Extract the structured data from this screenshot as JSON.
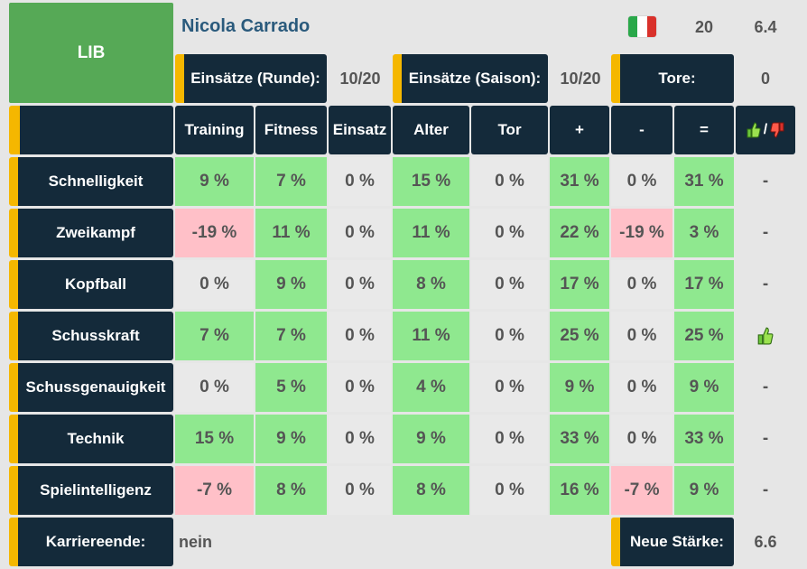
{
  "player": {
    "position": "LIB",
    "name": "Nicola Carrado",
    "flag_colors": [
      "#2aa84a",
      "#ffffff",
      "#d9312b"
    ],
    "flag_icon": "italy-flag-icon",
    "age": "20",
    "strength": "6.4"
  },
  "stats_header": [
    {
      "label": "Einsätze (Runde):",
      "value": "10/20"
    },
    {
      "label": "Einsätze (Saison):",
      "value": "10/20"
    },
    {
      "label": "Tore:",
      "value": "0"
    }
  ],
  "columns": [
    "Training",
    "Fitness",
    "Einsatz",
    "Alter",
    "Tor",
    "+",
    "-",
    "="
  ],
  "trend_column_icons": {
    "up": "thumbs-up-icon",
    "separator": "/",
    "down": "thumbs-down-icon"
  },
  "rows": [
    {
      "label": "Schnelligkeit",
      "values": [
        "9 %",
        "7 %",
        "0 %",
        "15 %",
        "0 %",
        "31 %",
        "0 %",
        "31 %"
      ],
      "tones": [
        "g",
        "g",
        "n",
        "g",
        "n",
        "g",
        "n",
        "g"
      ],
      "trend": "-"
    },
    {
      "label": "Zweikampf",
      "values": [
        "-19 %",
        "11 %",
        "0 %",
        "11 %",
        "0 %",
        "22 %",
        "-19 %",
        "3 %"
      ],
      "tones": [
        "r",
        "g",
        "n",
        "g",
        "n",
        "g",
        "r",
        "g"
      ],
      "trend": "-"
    },
    {
      "label": "Kopfball",
      "values": [
        "0 %",
        "9 %",
        "0 %",
        "8 %",
        "0 %",
        "17 %",
        "0 %",
        "17 %"
      ],
      "tones": [
        "n",
        "g",
        "n",
        "g",
        "n",
        "g",
        "n",
        "g"
      ],
      "trend": "-"
    },
    {
      "label": "Schusskraft",
      "values": [
        "7 %",
        "7 %",
        "0 %",
        "11 %",
        "0 %",
        "25 %",
        "0 %",
        "25 %"
      ],
      "tones": [
        "g",
        "g",
        "n",
        "g",
        "n",
        "g",
        "n",
        "g"
      ],
      "trend": "thumbs-up-icon"
    },
    {
      "label": "Schussgenauigkeit",
      "values": [
        "0 %",
        "5 %",
        "0 %",
        "4 %",
        "0 %",
        "9 %",
        "0 %",
        "9 %"
      ],
      "tones": [
        "n",
        "g",
        "n",
        "g",
        "n",
        "g",
        "n",
        "g"
      ],
      "trend": "-"
    },
    {
      "label": "Technik",
      "values": [
        "15 %",
        "9 %",
        "0 %",
        "9 %",
        "0 %",
        "33 %",
        "0 %",
        "33 %"
      ],
      "tones": [
        "g",
        "g",
        "n",
        "g",
        "n",
        "g",
        "n",
        "g"
      ],
      "trend": "-"
    },
    {
      "label": "Spielintelligenz",
      "values": [
        "-7 %",
        "8 %",
        "0 %",
        "8 %",
        "0 %",
        "16 %",
        "-7 %",
        "9 %"
      ],
      "tones": [
        "r",
        "g",
        "n",
        "g",
        "n",
        "g",
        "r",
        "g"
      ],
      "trend": "-"
    }
  ],
  "footer": {
    "career_end_label": "Karriereende:",
    "career_end_value": "nein",
    "new_strength_label": "Neue Stärke:",
    "new_strength_value": "6.6"
  },
  "colors": {
    "dark": "#142a3a",
    "accent": "#f5b700",
    "positive": "#8fe88f",
    "negative": "#ffc0c8",
    "neutral": "#e9e9e9",
    "position_badge": "#56a956"
  }
}
